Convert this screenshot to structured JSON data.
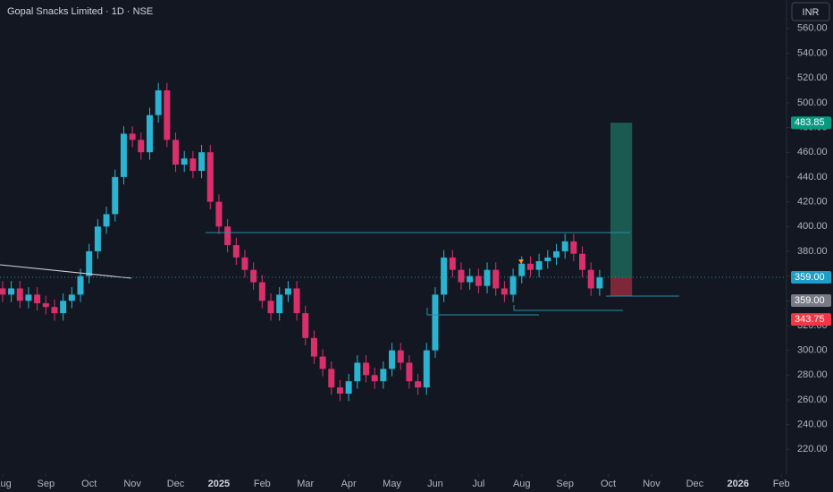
{
  "chart_data": {
    "type": "candlestick",
    "title": "Gopal Snacks Limited · 1D · NSE",
    "currency": "INR",
    "up_color": "#2bb3cf",
    "down_color": "#d9306b",
    "xlim": [
      -0.06,
      18.12
    ],
    "xticks": [
      {
        "value": 0,
        "label": "Aug"
      },
      {
        "value": 1,
        "label": "Sep"
      },
      {
        "value": 2,
        "label": "Oct"
      },
      {
        "value": 3,
        "label": "Nov"
      },
      {
        "value": 4,
        "label": "Dec"
      },
      {
        "value": 5,
        "label": "2025"
      },
      {
        "value": 6,
        "label": "Feb"
      },
      {
        "value": 7,
        "label": "Mar"
      },
      {
        "value": 8,
        "label": "Apr"
      },
      {
        "value": 9,
        "label": "May"
      },
      {
        "value": 10,
        "label": "Jun"
      },
      {
        "value": 11,
        "label": "Jul"
      },
      {
        "value": 12,
        "label": "Aug"
      },
      {
        "value": 13,
        "label": "Sep"
      },
      {
        "value": 14,
        "label": "Oct"
      },
      {
        "value": 15,
        "label": "Nov"
      },
      {
        "value": 16,
        "label": "Dec"
      },
      {
        "value": 17,
        "label": "2026"
      },
      {
        "value": 18,
        "label": "Feb"
      }
    ],
    "ylim": [
      200,
      583
    ],
    "yticks": [
      {
        "value": 220,
        "label": "220.00"
      },
      {
        "value": 240,
        "label": "240.00"
      },
      {
        "value": 260,
        "label": "260.00"
      },
      {
        "value": 280,
        "label": "280.00"
      },
      {
        "value": 300,
        "label": "300.00"
      },
      {
        "value": 320,
        "label": "320.00"
      },
      {
        "value": 340,
        "label": "340.00"
      },
      {
        "value": 360,
        "label": "360.00"
      },
      {
        "value": 380,
        "label": "380.00"
      },
      {
        "value": 400,
        "label": "400.00"
      },
      {
        "value": 420,
        "label": "420.00"
      },
      {
        "value": 440,
        "label": "440.00"
      },
      {
        "value": 460,
        "label": "460.00"
      },
      {
        "value": 480,
        "label": "480.00"
      },
      {
        "value": 500,
        "label": "500.00"
      },
      {
        "value": 520,
        "label": "520.00"
      },
      {
        "value": 540,
        "label": "540.00"
      },
      {
        "value": 560,
        "label": "560.00"
      }
    ],
    "grid": false,
    "x": [
      0,
      0.2,
      0.4,
      0.6,
      0.8,
      1,
      1.2,
      1.4,
      1.6,
      1.8,
      2,
      2.2,
      2.4,
      2.6,
      2.8,
      3,
      3.2,
      3.4,
      3.6,
      3.8,
      4,
      4.2,
      4.4,
      4.6,
      4.8,
      5,
      5.2,
      5.4,
      5.6,
      5.8,
      6,
      6.2,
      6.4,
      6.6,
      6.8,
      7,
      7.2,
      7.4,
      7.6,
      7.8,
      8,
      8.2,
      8.4,
      8.6,
      8.8,
      9,
      9.2,
      9.4,
      9.6,
      9.8,
      10,
      10.2,
      10.4,
      10.6,
      10.8,
      11,
      11.2,
      11.4,
      11.6,
      11.8,
      12,
      12.2,
      12.4,
      12.6,
      12.8,
      13,
      13.2,
      13.4,
      13.6,
      13.8
    ],
    "open": [
      350,
      345,
      350,
      340,
      345,
      338,
      335,
      330,
      340,
      345,
      360,
      380,
      400,
      410,
      440,
      475,
      470,
      460,
      490,
      510,
      470,
      450,
      455,
      445,
      460,
      420,
      400,
      385,
      375,
      365,
      355,
      340,
      330,
      345,
      350,
      330,
      310,
      295,
      285,
      270,
      265,
      275,
      290,
      280,
      275,
      285,
      300,
      290,
      275,
      270,
      300,
      345,
      375,
      365,
      355,
      360,
      352,
      365,
      350,
      345,
      360,
      370,
      365,
      372,
      375,
      380,
      388,
      378,
      365,
      350
    ],
    "high": [
      356,
      356,
      356,
      351,
      351,
      344,
      341,
      346,
      351,
      366,
      386,
      406,
      416,
      446,
      481,
      481,
      476,
      496,
      516,
      516,
      476,
      461,
      461,
      466,
      466,
      426,
      406,
      391,
      381,
      371,
      361,
      346,
      351,
      356,
      356,
      336,
      316,
      301,
      291,
      276,
      281,
      296,
      296,
      286,
      291,
      306,
      306,
      296,
      281,
      306,
      351,
      381,
      381,
      371,
      366,
      366,
      371,
      371,
      356,
      366,
      376,
      376,
      378,
      381,
      386,
      394,
      394,
      384,
      371,
      365
    ],
    "low": [
      339,
      339,
      334,
      334,
      332,
      329,
      324,
      324,
      334,
      339,
      354,
      374,
      394,
      404,
      434,
      464,
      454,
      454,
      484,
      464,
      444,
      444,
      439,
      439,
      414,
      394,
      379,
      369,
      359,
      349,
      334,
      324,
      324,
      339,
      324,
      304,
      289,
      279,
      264,
      259,
      259,
      269,
      274,
      269,
      269,
      279,
      284,
      269,
      264,
      264,
      294,
      339,
      359,
      349,
      349,
      346,
      346,
      344,
      339,
      339,
      354,
      359,
      359,
      366,
      369,
      374,
      372,
      359,
      344,
      344
    ],
    "close": [
      345,
      350,
      340,
      345,
      338,
      335,
      330,
      340,
      345,
      360,
      380,
      400,
      410,
      440,
      475,
      470,
      460,
      490,
      510,
      470,
      450,
      455,
      445,
      460,
      420,
      400,
      385,
      375,
      365,
      355,
      340,
      330,
      345,
      350,
      330,
      310,
      295,
      285,
      270,
      265,
      275,
      290,
      280,
      275,
      285,
      300,
      290,
      275,
      270,
      300,
      345,
      375,
      365,
      355,
      360,
      352,
      365,
      350,
      345,
      360,
      370,
      365,
      372,
      375,
      380,
      388,
      378,
      365,
      350,
      359
    ],
    "position": {
      "x": [
        14.05,
        14.55
      ],
      "entry": 359,
      "target": 483.85,
      "stop": 343.75,
      "target_color": "#1e6b5c",
      "stop_color": "#8a2a3a"
    },
    "price_labels": [
      {
        "value": 483.85,
        "label": "483.85",
        "color": "#089981"
      },
      {
        "value": 359,
        "label": "359.00",
        "color": "#1e9ec4"
      },
      {
        "value": 359,
        "label": "359.00",
        "color": "#787b86"
      },
      {
        "value": 343.75,
        "label": "343.75",
        "color": "#f23645"
      }
    ]
  }
}
